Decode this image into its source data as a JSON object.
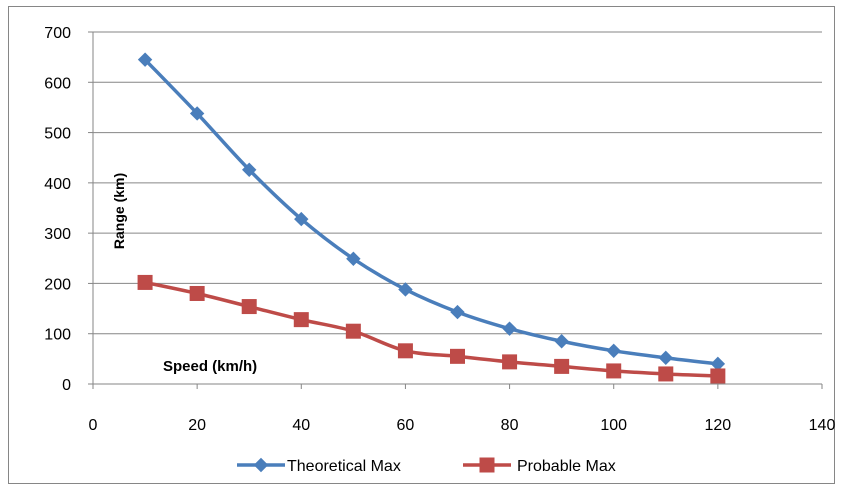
{
  "chart_data": {
    "type": "line",
    "title": "",
    "xlabel": "Speed (km/h)",
    "ylabel": "Range (km)",
    "xlim": [
      0,
      140
    ],
    "ylim": [
      0,
      700
    ],
    "xticks": [
      "0",
      "20",
      "40",
      "60",
      "80",
      "100",
      "120",
      "140"
    ],
    "yticks": [
      "0",
      "100",
      "200",
      "300",
      "400",
      "500",
      "600",
      "700"
    ],
    "grid": "horizontal",
    "legend_position": "bottom",
    "series": [
      {
        "name": "Theoretical Max",
        "color": "#4a7ebb",
        "marker": "diamond",
        "x": [
          10,
          20,
          30,
          40,
          50,
          60,
          70,
          80,
          90,
          100,
          110,
          120
        ],
        "y": [
          645,
          538,
          426,
          328,
          249,
          188,
          143,
          110,
          85,
          66,
          52,
          40
        ]
      },
      {
        "name": "Probable Max",
        "color": "#be4b48",
        "marker": "square",
        "x": [
          10,
          20,
          30,
          40,
          50,
          60,
          70,
          80,
          90,
          100,
          110,
          120
        ],
        "y": [
          202,
          180,
          154,
          128,
          105,
          66,
          55,
          44,
          35,
          26,
          20,
          16
        ]
      }
    ]
  }
}
